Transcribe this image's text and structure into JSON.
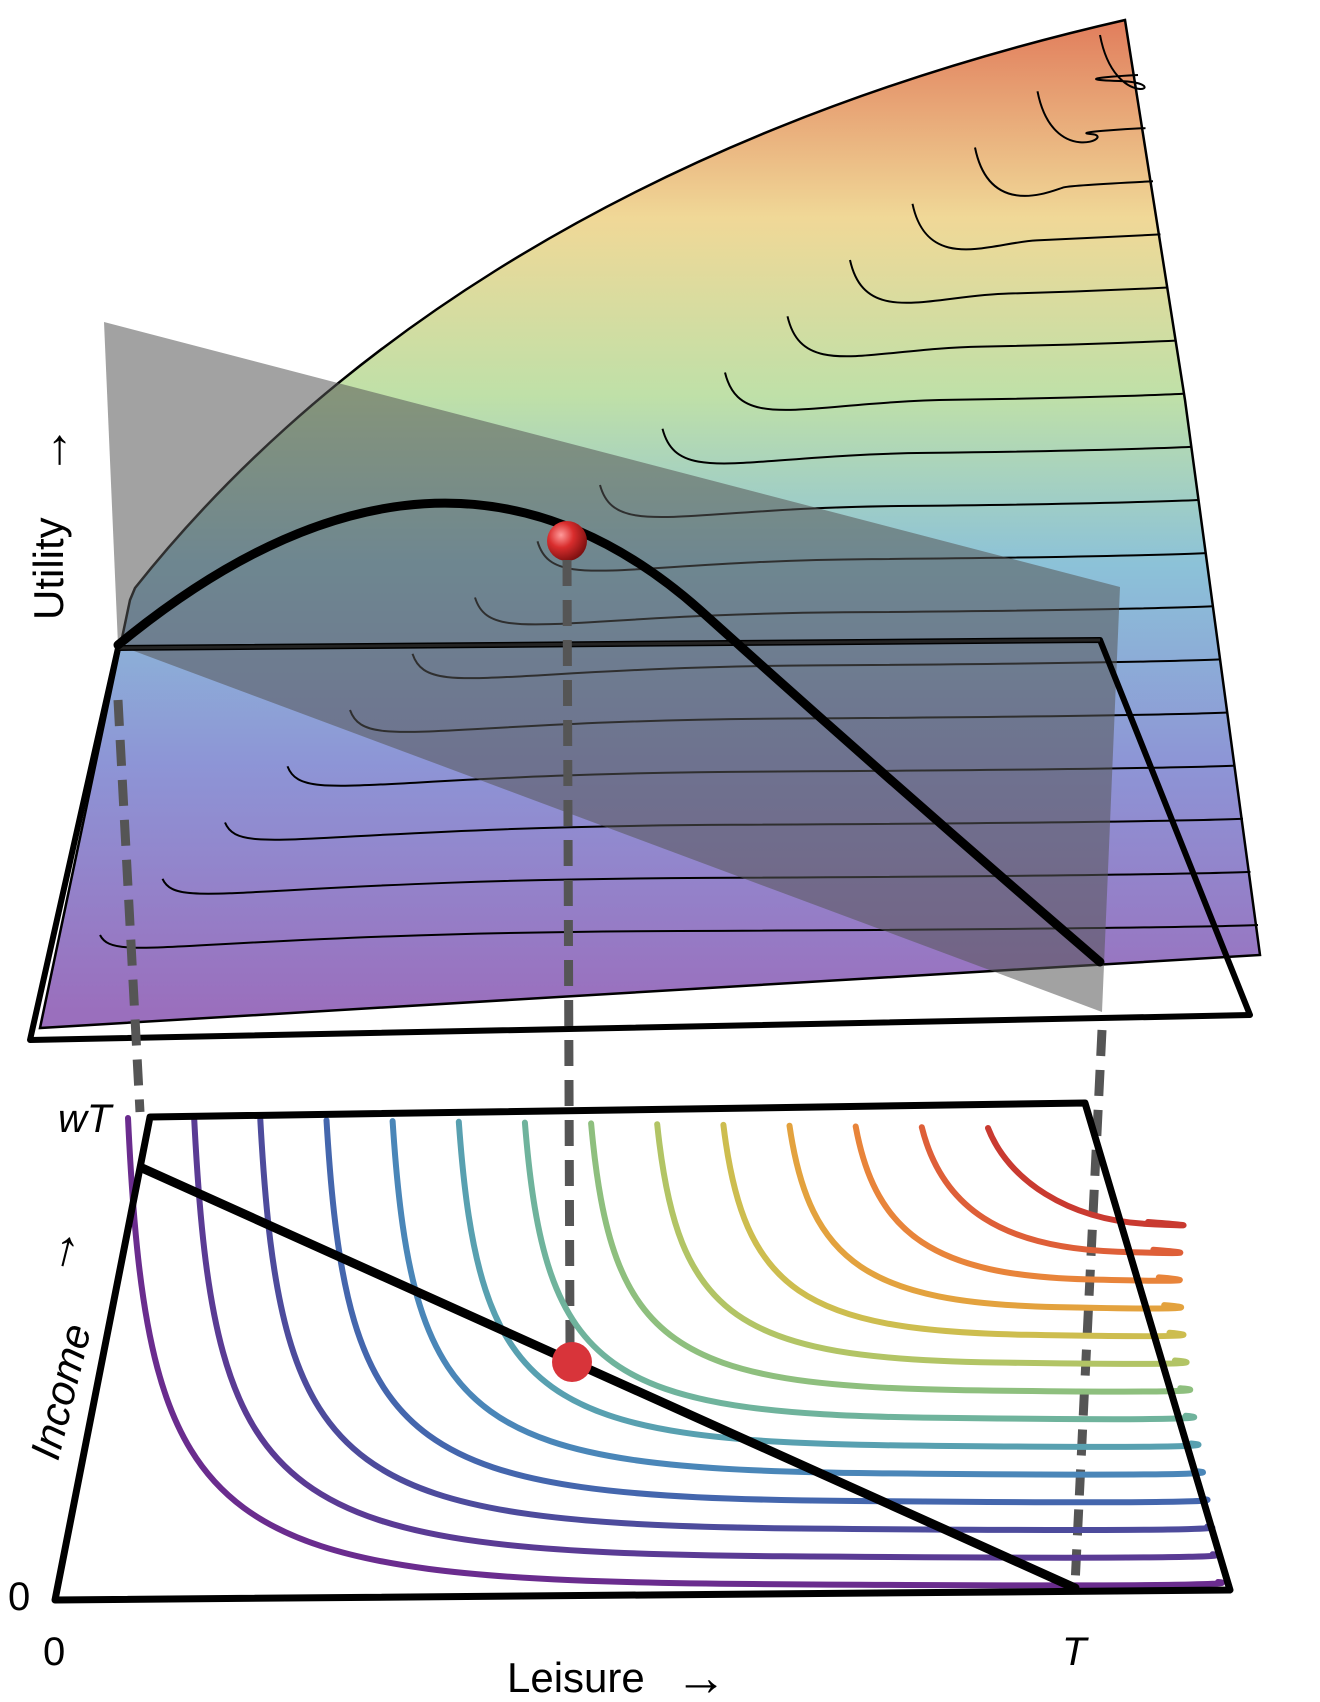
{
  "labels": {
    "utility_axis": "Utility",
    "income_axis": "Income",
    "leisure_axis": "Leisure",
    "income_max": "wT",
    "income_origin": "0",
    "leisure_origin": "0",
    "leisure_max": "T"
  },
  "arrow_glyph": "→",
  "colors": {
    "optimum_point": "#d02a2a",
    "budget_line": "#000000",
    "budget_plane": "#5a5a5a",
    "projection_lines": "#555555",
    "surface_low": "#8e63b4",
    "surface_high": "#e07d5a"
  },
  "indifference_curve_colors": [
    "#6a2c8e",
    "#5a3b94",
    "#4d4b9c",
    "#4466ad",
    "#4a86b8",
    "#58a0b0",
    "#6fb39c",
    "#8ebf7e",
    "#b2c465",
    "#cdbd4f",
    "#e3a23e",
    "#e8843a",
    "#de5f38",
    "#c93a30"
  ]
}
